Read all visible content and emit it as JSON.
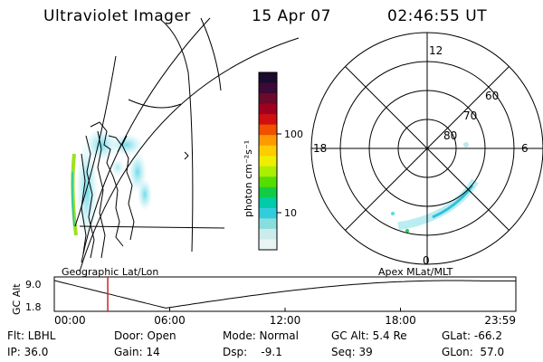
{
  "header": {
    "instrument": "Ultraviolet Imager",
    "date": "15 Apr 07",
    "time": "02:46:55 UT"
  },
  "geo_panel": {
    "caption": "Geographic Lat/Lon"
  },
  "colorbar": {
    "unit_label": "photon cm⁻²s⁻¹",
    "ticks": [
      "100",
      "10"
    ],
    "colors": [
      "#1a0a2e",
      "#3b0a36",
      "#6b0a2a",
      "#a00020",
      "#d01010",
      "#f05000",
      "#ff9900",
      "#ffcc00",
      "#eeee00",
      "#aaee00",
      "#55dd00",
      "#11cc44",
      "#00ccaa",
      "#33ccdd",
      "#88dddd",
      "#ccebeb",
      "#e8f4f4"
    ]
  },
  "polar_panel": {
    "caption": "Apex MLat/MLT",
    "mlt_labels": {
      "top": "12",
      "left": "18",
      "right": "6",
      "bottom": "0"
    },
    "lat_labels": [
      "60",
      "70",
      "80"
    ]
  },
  "altitude_plot": {
    "ylabel": "GC Alt",
    "y_ticks": [
      "9.0",
      "1.8"
    ],
    "x_ticks": [
      "00:00",
      "06:00",
      "12:00",
      "18:00",
      "23:59"
    ],
    "marker_time_hours": 2.78,
    "marker_color": "#cc2222"
  },
  "info": {
    "flt": "Flt: LBHL",
    "ip": "IP: 36.0",
    "door": "Door: Open",
    "gain": "Gain: 14",
    "mode": "Mode: Normal",
    "dsp": "Dsp:    -9.1",
    "gc_alt": "GC Alt: 5.4 Re",
    "seq": "Seq: 39",
    "glat": "GLat: -66.2",
    "glon": "GLon:  57.0"
  }
}
